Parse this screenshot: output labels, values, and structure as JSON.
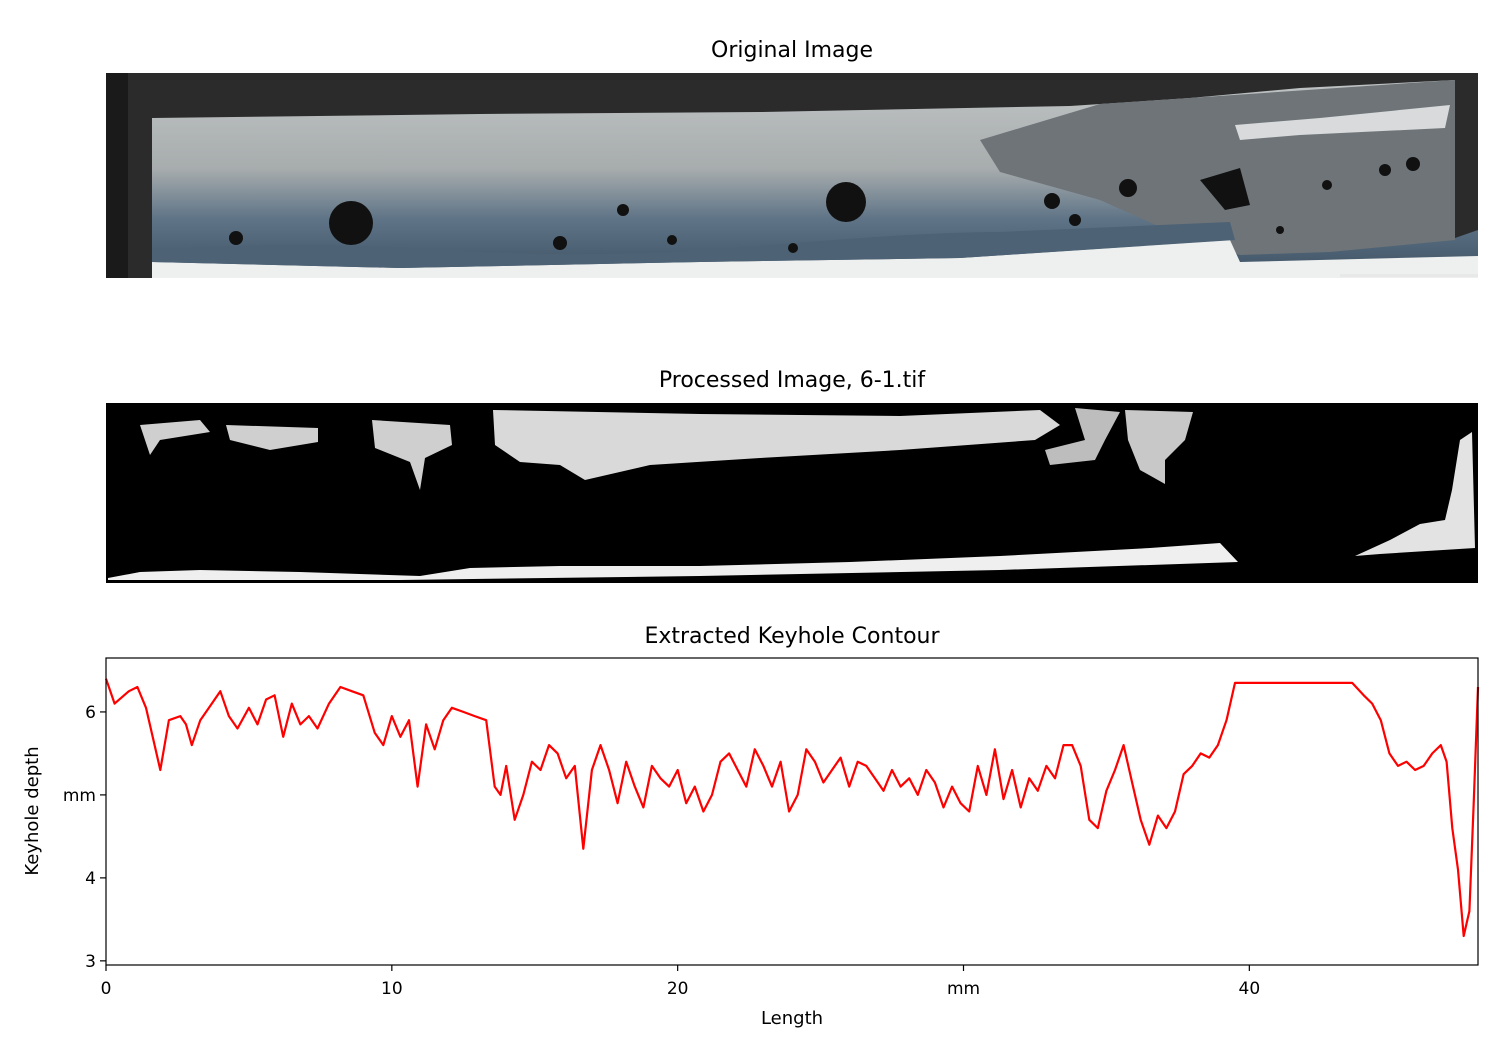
{
  "panels": {
    "original_title": "Original Image",
    "processed_title": "Processed Image, 6-1.tif",
    "contour_title": "Extracted Keyhole Contour"
  },
  "chart_data": {
    "type": "line",
    "title": "Extracted Keyhole Contour",
    "xlabel": "Length",
    "ylabel": "Keyhole depth",
    "xlim": [
      0,
      48
    ],
    "ylim": [
      2.95,
      6.65
    ],
    "x_ticks": [
      {
        "value": 0,
        "label": "0"
      },
      {
        "value": 10,
        "label": "10"
      },
      {
        "value": 20,
        "label": "20"
      },
      {
        "value": 30,
        "label": "mm"
      },
      {
        "value": 40,
        "label": "40"
      }
    ],
    "y_ticks": [
      {
        "value": 3,
        "label": "3"
      },
      {
        "value": 4,
        "label": "4"
      },
      {
        "value": 5,
        "label": "mm"
      },
      {
        "value": 6,
        "label": "6"
      }
    ],
    "series_color": "#ff0000",
    "series": [
      {
        "x": [
          0,
          0.3,
          0.8,
          1.1,
          1.4,
          1.7,
          1.9,
          2.2,
          2.6,
          2.8,
          3.0,
          3.3,
          3.7,
          4.0,
          4.3,
          4.6,
          5.0,
          5.3,
          5.6,
          5.9,
          6.2,
          6.5,
          6.8,
          7.1,
          7.4,
          7.8,
          8.2,
          8.6,
          9.0,
          9.4,
          9.7,
          10.0,
          10.3,
          10.6,
          10.9,
          11.2,
          11.5,
          11.8,
          12.1,
          12.5,
          12.9,
          13.3,
          13.6,
          13.8,
          14.0,
          14.3,
          14.6,
          14.9,
          15.2,
          15.5,
          15.8,
          16.1,
          16.4,
          16.7,
          17.0,
          17.3,
          17.6,
          17.9,
          18.2,
          18.5,
          18.8,
          19.1,
          19.4,
          19.7,
          20.0,
          20.3,
          20.6,
          20.9,
          21.2,
          21.5,
          21.8,
          22.1,
          22.4,
          22.7,
          23.0,
          23.3,
          23.6,
          23.9,
          24.2,
          24.5,
          24.8,
          25.1,
          25.4,
          25.7,
          26.0,
          26.3,
          26.6,
          26.9,
          27.2,
          27.5,
          27.8,
          28.1,
          28.4,
          28.7,
          29.0,
          29.3,
          29.6,
          29.9,
          30.2,
          30.5,
          30.8,
          31.1,
          31.4,
          31.7,
          32.0,
          32.3,
          32.6,
          32.9,
          33.2,
          33.5,
          33.8,
          34.1,
          34.4,
          34.7,
          35.0,
          35.3,
          35.6,
          35.9,
          36.2,
          36.5,
          36.8,
          37.1,
          37.4,
          37.7,
          38.0,
          38.3,
          38.6,
          38.9,
          39.2,
          39.5,
          40.0,
          41.0,
          42.0,
          43.0,
          43.6,
          44.0,
          44.3,
          44.6,
          44.9,
          45.2,
          45.5,
          45.8,
          46.1,
          46.4,
          46.7,
          46.9,
          47.1,
          47.3,
          47.5,
          47.7,
          47.85,
          48.0
        ],
        "y": [
          6.4,
          6.1,
          6.25,
          6.3,
          6.05,
          5.6,
          5.3,
          5.9,
          5.95,
          5.85,
          5.6,
          5.9,
          6.1,
          6.25,
          5.95,
          5.8,
          6.05,
          5.85,
          6.15,
          6.2,
          5.7,
          6.1,
          5.85,
          5.95,
          5.8,
          6.1,
          6.3,
          6.25,
          6.2,
          5.75,
          5.6,
          5.95,
          5.7,
          5.9,
          5.1,
          5.85,
          5.55,
          5.9,
          6.05,
          6.0,
          5.95,
          5.9,
          5.1,
          5.0,
          5.35,
          4.7,
          5.0,
          5.4,
          5.3,
          5.6,
          5.5,
          5.2,
          5.35,
          4.35,
          5.3,
          5.6,
          5.3,
          4.9,
          5.4,
          5.1,
          4.85,
          5.35,
          5.2,
          5.1,
          5.3,
          4.9,
          5.1,
          4.8,
          5.0,
          5.4,
          5.5,
          5.3,
          5.1,
          5.55,
          5.35,
          5.1,
          5.4,
          4.8,
          5.0,
          5.55,
          5.4,
          5.15,
          5.3,
          5.45,
          5.1,
          5.4,
          5.35,
          5.2,
          5.05,
          5.3,
          5.1,
          5.2,
          5.0,
          5.3,
          5.15,
          4.85,
          5.1,
          4.9,
          4.8,
          5.35,
          5.0,
          5.55,
          4.95,
          5.3,
          4.85,
          5.2,
          5.05,
          5.35,
          5.2,
          5.6,
          5.6,
          5.35,
          4.7,
          4.6,
          5.05,
          5.3,
          5.6,
          5.15,
          4.7,
          4.4,
          4.75,
          4.6,
          4.8,
          5.25,
          5.35,
          5.5,
          5.45,
          5.6,
          5.9,
          6.35,
          6.35,
          6.35,
          6.35,
          6.35,
          6.35,
          6.2,
          6.1,
          5.9,
          5.5,
          5.35,
          5.4,
          5.3,
          5.35,
          5.5,
          5.6,
          5.4,
          4.6,
          4.1,
          3.3,
          3.6,
          4.9,
          6.3
        ]
      }
    ]
  }
}
